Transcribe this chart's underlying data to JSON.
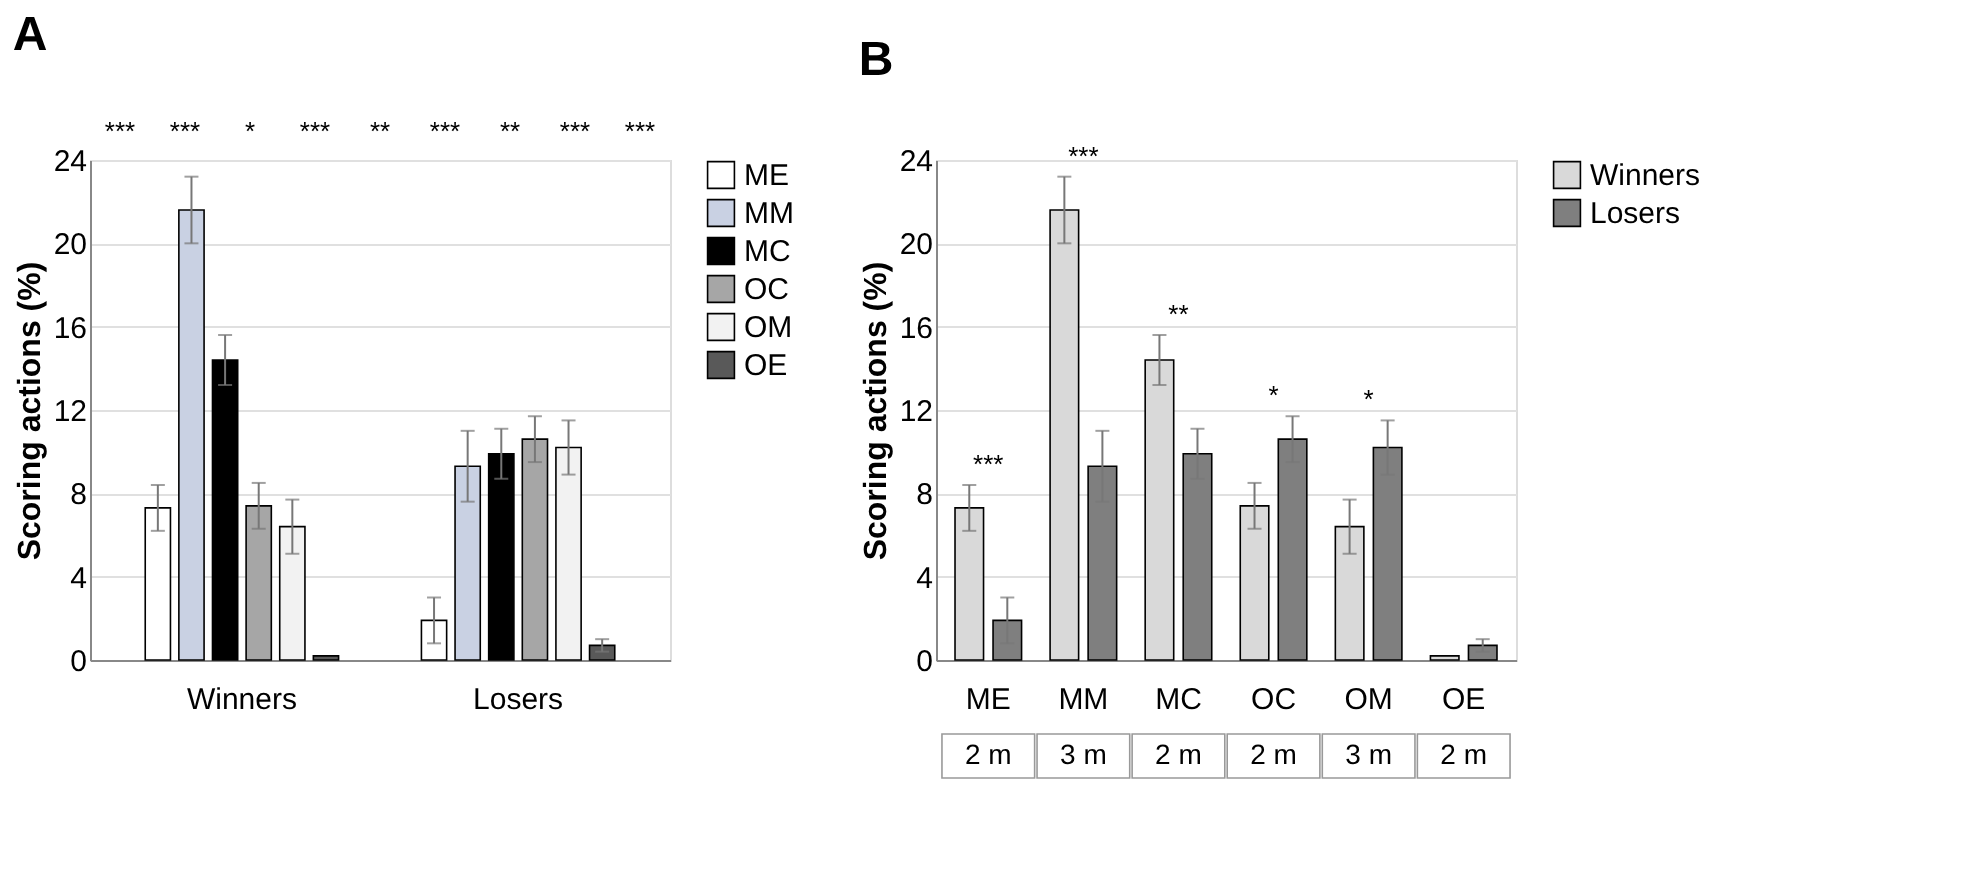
{
  "chart_data": [
    {
      "type": "bar",
      "title": "A",
      "ylabel": "Scoring actions (%)",
      "categories": [
        "Winners",
        "Losers"
      ],
      "ylim": [
        0,
        24
      ],
      "yticks": [
        0,
        4,
        8,
        12,
        16,
        20,
        24
      ],
      "grid": "y",
      "legend": "right",
      "series": [
        {
          "name": "ME",
          "color": "#ffffff",
          "values": [
            7.3,
            1.9
          ],
          "errors": [
            1.1,
            1.1
          ]
        },
        {
          "name": "MM",
          "color": "#c9d1e3",
          "values": [
            21.6,
            9.3
          ],
          "errors": [
            1.6,
            1.7
          ]
        },
        {
          "name": "MC",
          "color": "#000000",
          "values": [
            14.4,
            9.9
          ],
          "errors": [
            1.2,
            1.2
          ]
        },
        {
          "name": "OC",
          "color": "#a6a6a6",
          "values": [
            7.4,
            10.6
          ],
          "errors": [
            1.1,
            1.1
          ]
        },
        {
          "name": "OM",
          "color": "#f2f2f2",
          "values": [
            6.4,
            10.2
          ],
          "errors": [
            1.3,
            1.3
          ]
        },
        {
          "name": "OE",
          "color": "#595959",
          "values": [
            0.2,
            0.7
          ],
          "errors": [
            null,
            0.3
          ]
        }
      ],
      "annotations": [
        "***",
        "***",
        "*",
        "***",
        "**",
        "***",
        "**",
        "***",
        "***"
      ]
    },
    {
      "type": "bar",
      "title": "B",
      "ylabel": "Scoring actions (%)",
      "categories": [
        "ME",
        "MM",
        "MC",
        "OC",
        "OM",
        "OE"
      ],
      "ylim": [
        0,
        24
      ],
      "yticks": [
        0,
        4,
        8,
        12,
        16,
        20,
        24
      ],
      "grid": "y",
      "legend": "right",
      "series": [
        {
          "name": "Winners",
          "color": "#d9d9d9",
          "values": [
            7.3,
            21.6,
            14.4,
            7.4,
            6.4,
            0.2
          ],
          "errors": [
            1.1,
            1.6,
            1.2,
            1.1,
            1.3,
            null
          ]
        },
        {
          "name": "Losers",
          "color": "#7f7f7f",
          "values": [
            1.9,
            9.3,
            9.9,
            10.6,
            10.2,
            0.7
          ],
          "errors": [
            1.1,
            1.7,
            1.2,
            1.1,
            1.3,
            0.3
          ]
        }
      ],
      "annotations": [
        "***",
        "***",
        "**",
        "*",
        "*",
        "2 m",
        "3 m",
        "2 m",
        "2 m",
        "3 m",
        "2 m"
      ]
    }
  ]
}
